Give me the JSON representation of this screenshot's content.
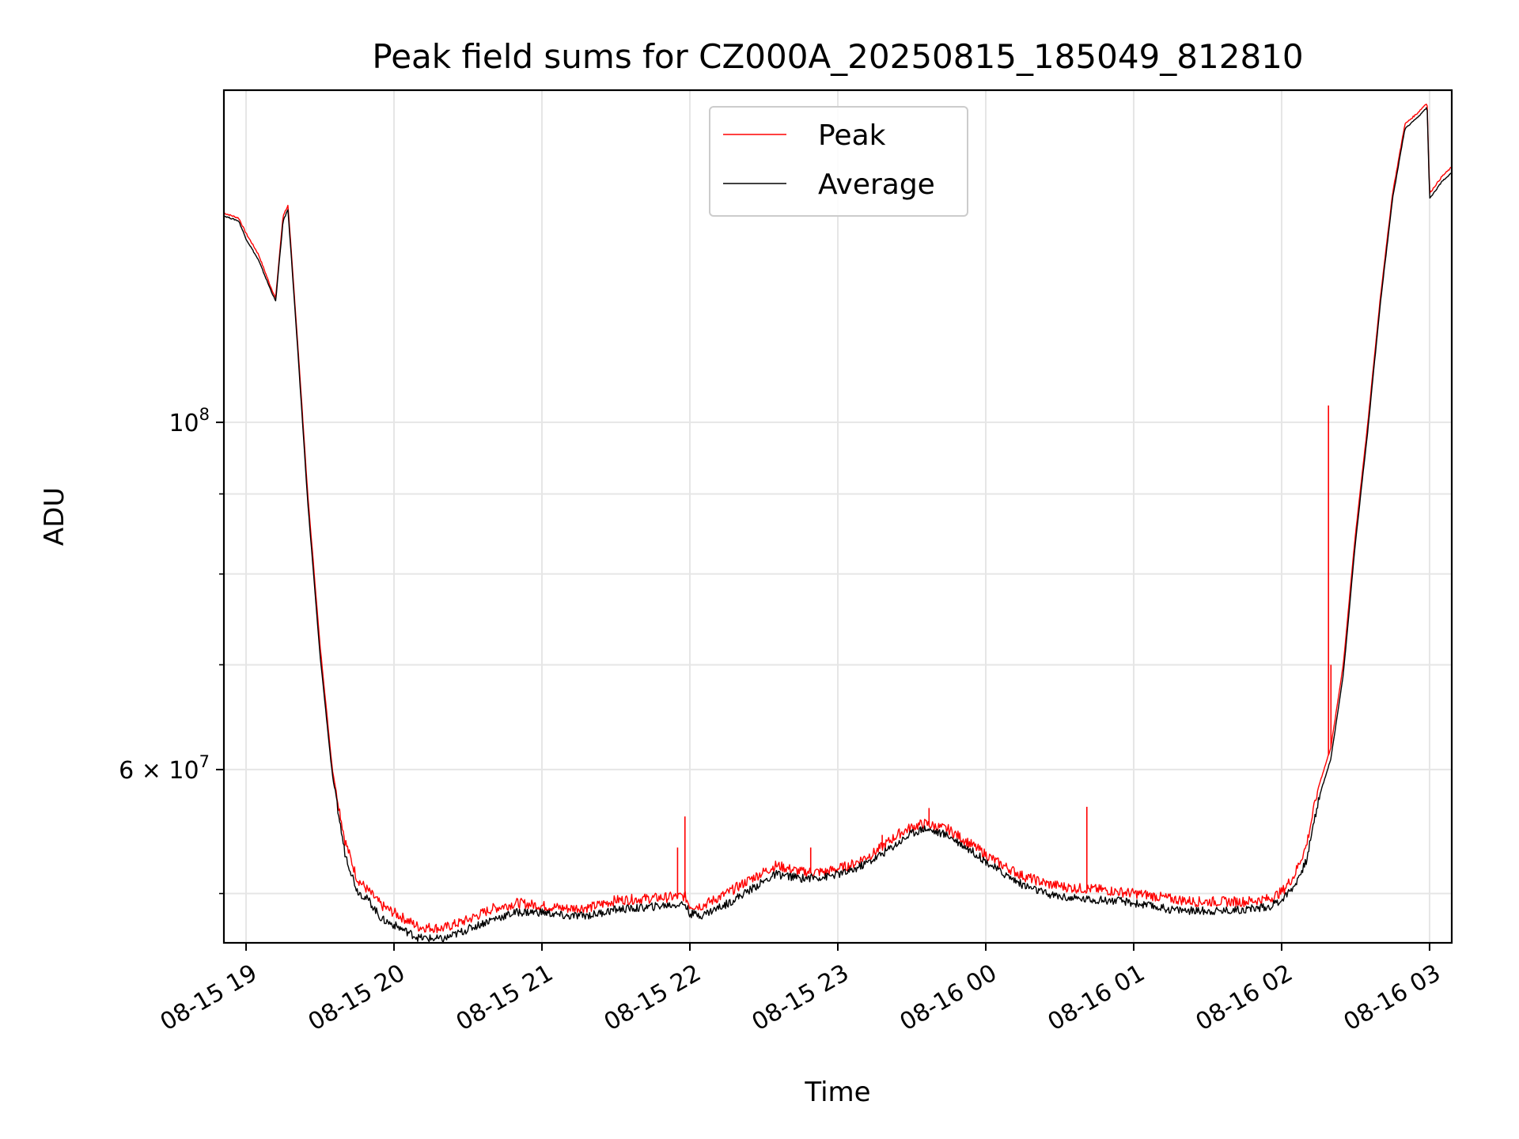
{
  "chart_data": {
    "type": "line",
    "title": "Peak field sums for CZ000A_20250815_185049_812810",
    "xlabel": "Time",
    "ylabel": "ADU",
    "yscale": "log",
    "ylim": [
      46500000,
      163000000
    ],
    "xlim": [
      "2025-08-15 18:51",
      "2025-08-16 03:09"
    ],
    "x_ticks": [
      "08-15 19",
      "08-15 20",
      "08-15 21",
      "08-15 22",
      "08-15 23",
      "08-16 00",
      "08-16 01",
      "08-16 02",
      "08-16 03"
    ],
    "y_ticks": [
      {
        "value": 100000000,
        "base": "10",
        "exp": "8"
      },
      {
        "value": 60000000,
        "base": "6 × 10",
        "exp": "7"
      }
    ],
    "y_minor_ticks": [
      50000000,
      70000000,
      80000000,
      90000000
    ],
    "grid": true,
    "legend_position": "upper-center",
    "series": [
      {
        "name": "Peak",
        "color": "#ff0000",
        "x": [
          "2025-08-15 18:51",
          "2025-08-15 18:57",
          "2025-08-15 19:00",
          "2025-08-15 19:05",
          "2025-08-15 19:10",
          "2025-08-15 19:12",
          "2025-08-15 19:15",
          "2025-08-15 19:17",
          "2025-08-15 19:21",
          "2025-08-15 19:25",
          "2025-08-15 19:30",
          "2025-08-15 19:35",
          "2025-08-15 19:40",
          "2025-08-15 19:45",
          "2025-08-15 19:50",
          "2025-08-15 19:55",
          "2025-08-15 20:00",
          "2025-08-15 20:10",
          "2025-08-15 20:20",
          "2025-08-15 20:30",
          "2025-08-15 20:40",
          "2025-08-15 20:50",
          "2025-08-15 21:00",
          "2025-08-15 21:10",
          "2025-08-15 21:20",
          "2025-08-15 21:30",
          "2025-08-15 21:40",
          "2025-08-15 21:50",
          "2025-08-15 21:58",
          "2025-08-15 22:00",
          "2025-08-15 22:05",
          "2025-08-15 22:15",
          "2025-08-15 22:25",
          "2025-08-15 22:35",
          "2025-08-15 22:45",
          "2025-08-15 22:55",
          "2025-08-15 23:05",
          "2025-08-15 23:15",
          "2025-08-15 23:25",
          "2025-08-15 23:30",
          "2025-08-15 23:35",
          "2025-08-15 23:45",
          "2025-08-15 23:55",
          "2025-08-16 00:05",
          "2025-08-16 00:15",
          "2025-08-16 00:25",
          "2025-08-16 00:35",
          "2025-08-16 00:45",
          "2025-08-16 00:55",
          "2025-08-16 01:05",
          "2025-08-16 01:15",
          "2025-08-16 01:25",
          "2025-08-16 01:35",
          "2025-08-16 01:45",
          "2025-08-16 01:55",
          "2025-08-16 02:00",
          "2025-08-16 02:05",
          "2025-08-16 02:10",
          "2025-08-16 02:15",
          "2025-08-16 02:20",
          "2025-08-16 02:25",
          "2025-08-16 02:30",
          "2025-08-16 02:35",
          "2025-08-16 02:40",
          "2025-08-16 02:45",
          "2025-08-16 02:50",
          "2025-08-16 02:55",
          "2025-08-16 02:59",
          "2025-08-16 03:00",
          "2025-08-16 03:05",
          "2025-08-16 03:09"
        ],
        "y": [
          136000000,
          135000000,
          132000000,
          128000000,
          122000000,
          120000000,
          135500000,
          137500000,
          112000000,
          90000000,
          72000000,
          60000000,
          54000000,
          51000000,
          50000000,
          49000000,
          48500000,
          47500000,
          47400000,
          48000000,
          48800000,
          49200000,
          49000000,
          48800000,
          48900000,
          49400000,
          49500000,
          49600000,
          49700000,
          49000000,
          49000000,
          49900000,
          51000000,
          52000000,
          51500000,
          51500000,
          52000000,
          53000000,
          54500000,
          55000000,
          55300000,
          54800000,
          53500000,
          52200000,
          51200000,
          50600000,
          50300000,
          50200000,
          50000000,
          49800000,
          49500000,
          49300000,
          49300000,
          49300000,
          49500000,
          50000000,
          51200000,
          53500000,
          58500000,
          62000000,
          70000000,
          85000000,
          100000000,
          120000000,
          140000000,
          155000000,
          157500000,
          160000000,
          140000000,
          143500000,
          145500000
        ],
        "spikes": [
          {
            "x": "2025-08-15 21:58",
            "y": 56000000
          },
          {
            "x": "2025-08-15 21:55",
            "y": 53500000
          },
          {
            "x": "2025-08-15 22:49",
            "y": 53500000
          },
          {
            "x": "2025-08-15 23:18",
            "y": 54500000
          },
          {
            "x": "2025-08-15 23:37",
            "y": 56700000
          },
          {
            "x": "2025-08-16 00:41",
            "y": 56800000
          },
          {
            "x": "2025-08-16 02:19",
            "y": 102500000
          },
          {
            "x": "2025-08-16 02:20",
            "y": 70000000
          }
        ]
      },
      {
        "name": "Average",
        "color": "#000000",
        "x": [
          "2025-08-15 18:51",
          "2025-08-15 18:57",
          "2025-08-15 19:00",
          "2025-08-15 19:05",
          "2025-08-15 19:10",
          "2025-08-15 19:12",
          "2025-08-15 19:15",
          "2025-08-15 19:17",
          "2025-08-15 19:21",
          "2025-08-15 19:25",
          "2025-08-15 19:30",
          "2025-08-15 19:35",
          "2025-08-15 19:40",
          "2025-08-15 19:45",
          "2025-08-15 19:50",
          "2025-08-15 19:55",
          "2025-08-15 20:00",
          "2025-08-15 20:10",
          "2025-08-15 20:20",
          "2025-08-15 20:30",
          "2025-08-15 20:40",
          "2025-08-15 20:50",
          "2025-08-15 21:00",
          "2025-08-15 21:10",
          "2025-08-15 21:20",
          "2025-08-15 21:30",
          "2025-08-15 21:40",
          "2025-08-15 21:50",
          "2025-08-15 21:58",
          "2025-08-15 22:00",
          "2025-08-15 22:05",
          "2025-08-15 22:15",
          "2025-08-15 22:25",
          "2025-08-15 22:35",
          "2025-08-15 22:45",
          "2025-08-15 22:55",
          "2025-08-15 23:05",
          "2025-08-15 23:15",
          "2025-08-15 23:25",
          "2025-08-15 23:30",
          "2025-08-15 23:35",
          "2025-08-15 23:45",
          "2025-08-15 23:55",
          "2025-08-16 00:05",
          "2025-08-16 00:15",
          "2025-08-16 00:25",
          "2025-08-16 00:35",
          "2025-08-16 00:45",
          "2025-08-16 00:55",
          "2025-08-16 01:05",
          "2025-08-16 01:15",
          "2025-08-16 01:25",
          "2025-08-16 01:35",
          "2025-08-16 01:45",
          "2025-08-16 01:55",
          "2025-08-16 02:00",
          "2025-08-16 02:05",
          "2025-08-16 02:10",
          "2025-08-16 02:15",
          "2025-08-16 02:20",
          "2025-08-16 02:25",
          "2025-08-16 02:30",
          "2025-08-16 02:35",
          "2025-08-16 02:40",
          "2025-08-16 02:45",
          "2025-08-16 02:50",
          "2025-08-16 02:55",
          "2025-08-16 02:59",
          "2025-08-16 03:00",
          "2025-08-16 03:05",
          "2025-08-16 03:09"
        ],
        "y": [
          135500000,
          134500000,
          131000000,
          127000000,
          121500000,
          119500000,
          134500000,
          136800000,
          111000000,
          89000000,
          71000000,
          59500000,
          53200000,
          50300000,
          49500000,
          48200000,
          47800000,
          46900000,
          46800000,
          47500000,
          48200000,
          48700000,
          48700000,
          48400000,
          48500000,
          48900000,
          49000000,
          49200000,
          49300000,
          48600000,
          48500000,
          49300000,
          50400000,
          51500000,
          51200000,
          51300000,
          51700000,
          52700000,
          54000000,
          54700000,
          55100000,
          54500000,
          53200000,
          51800000,
          50700000,
          50000000,
          49700000,
          49600000,
          49500000,
          49200000,
          48900000,
          48800000,
          48800000,
          48900000,
          49100000,
          49600000,
          50600000,
          52500000,
          57500000,
          61000000,
          69000000,
          84000000,
          99000000,
          119000000,
          139000000,
          154000000,
          156500000,
          159000000,
          139000000,
          142500000,
          144500000
        ],
        "spikes": []
      }
    ]
  }
}
